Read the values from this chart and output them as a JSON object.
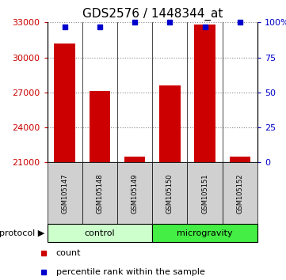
{
  "title": "GDS2576 / 1448344_at",
  "samples": [
    "GSM105147",
    "GSM105148",
    "GSM105149",
    "GSM105150",
    "GSM105151",
    "GSM105152"
  ],
  "counts": [
    31200,
    27100,
    21500,
    27600,
    32800,
    21500
  ],
  "percentiles": [
    97,
    97,
    100,
    100,
    97,
    100
  ],
  "ylim_left": [
    21000,
    33000
  ],
  "ylim_right": [
    0,
    100
  ],
  "yticks_left": [
    21000,
    24000,
    27000,
    30000,
    33000
  ],
  "yticks_right": [
    0,
    25,
    50,
    75,
    100
  ],
  "ytick_labels_right": [
    "0",
    "25",
    "50",
    "75",
    "100%"
  ],
  "bar_color": "#cc0000",
  "dot_color": "#0000cc",
  "grid_color": "#888888",
  "control_color": "#ccffcc",
  "microgravity_color": "#44ee44",
  "protocol_label": "protocol ▶",
  "control_label": "control",
  "microgravity_label": "microgravity",
  "legend_count": "count",
  "legend_percentile": "percentile rank within the sample",
  "bar_bottom": 21000,
  "title_fontsize": 11,
  "axis_fontsize": 8,
  "tick_fontsize": 8,
  "sample_fontsize": 6,
  "legend_fontsize": 8
}
